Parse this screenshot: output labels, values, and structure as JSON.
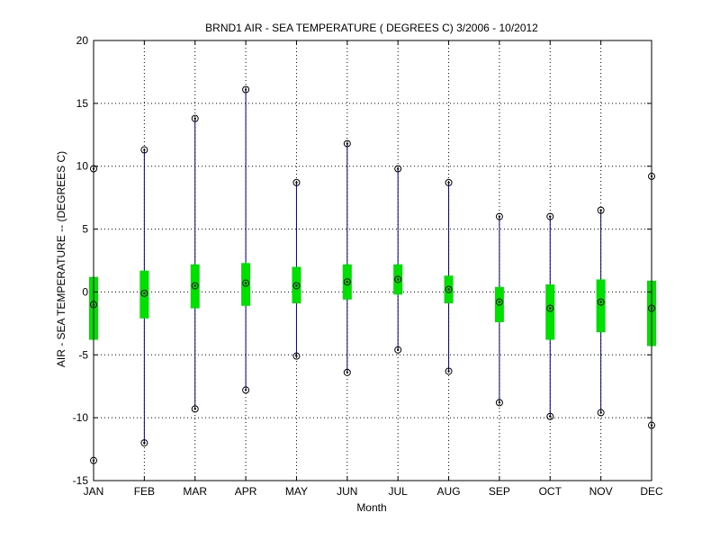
{
  "chart_data": {
    "type": "box",
    "title": "BRND1  AIR - SEA TEMPERATURE ( DEGREES C) 3/2006 - 10/2012",
    "xlabel": "Month",
    "ylabel": "AIR - SEA TEMPERATURE -- (DEGREES C)",
    "categories": [
      "JAN",
      "FEB",
      "MAR",
      "APR",
      "MAY",
      "JUN",
      "JUL",
      "AUG",
      "SEP",
      "OCT",
      "NOV",
      "DEC"
    ],
    "ylim": [
      -15,
      20
    ],
    "yticks": [
      -15,
      -10,
      -5,
      0,
      5,
      10,
      15,
      20
    ],
    "grid": true,
    "series": [
      {
        "max": [
          9.8,
          11.3,
          13.8,
          16.1,
          8.7,
          11.8,
          9.8,
          8.7,
          6.0,
          6.0,
          6.5,
          9.2
        ],
        "q3": [
          1.2,
          1.7,
          2.2,
          2.3,
          2.0,
          2.2,
          2.2,
          1.3,
          0.4,
          0.6,
          1.0,
          0.9
        ],
        "mean": [
          -1.0,
          -0.1,
          0.5,
          0.7,
          0.5,
          0.8,
          1.0,
          0.2,
          -0.8,
          -1.3,
          -0.8,
          -1.3
        ],
        "q1": [
          -3.8,
          -2.1,
          -1.3,
          -1.1,
          -0.9,
          -0.6,
          -0.2,
          -0.9,
          -2.4,
          -3.8,
          -3.2,
          -4.3
        ],
        "min": [
          -13.4,
          -12.0,
          -9.3,
          -7.8,
          -5.1,
          -6.4,
          -4.6,
          -6.3,
          -8.8,
          -9.9,
          -9.6,
          -10.6
        ]
      }
    ],
    "colors": {
      "whisker": "#00008b",
      "box": "#00e000",
      "marker": "#000000",
      "grid": "#000000"
    }
  }
}
